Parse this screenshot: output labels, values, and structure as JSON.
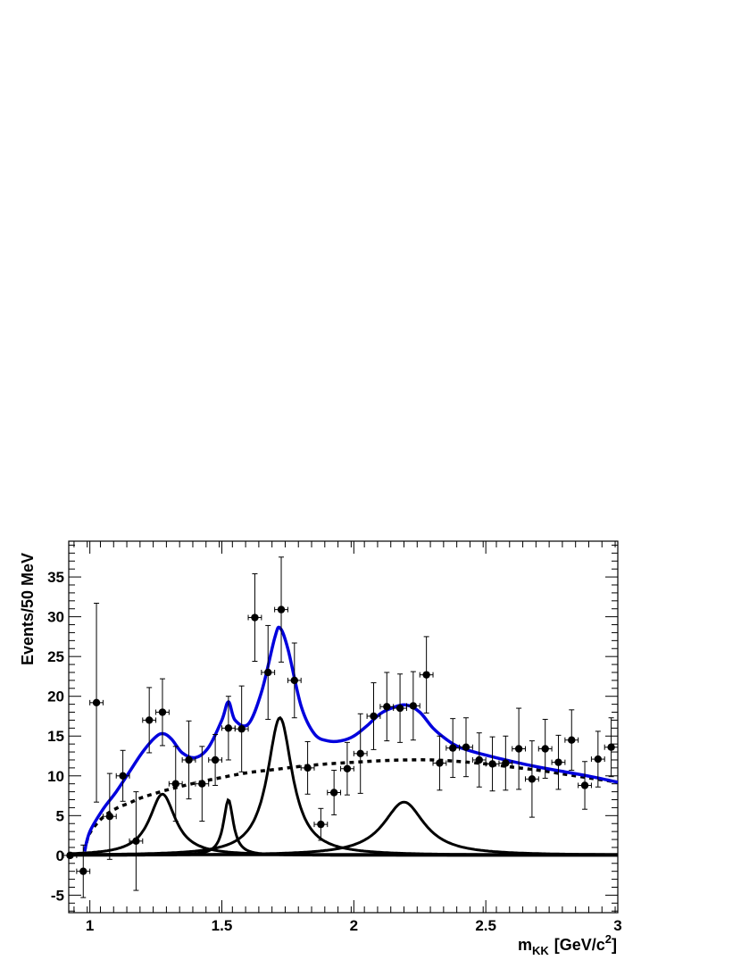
{
  "chart_data": {
    "type": "scatter",
    "title": "",
    "xlabel": "m",
    "xlabel_sub": "KK",
    "xlabel_unit": "[GeV/c",
    "xlabel_sup": "2",
    "xlabel_close": "]",
    "ylabel": "Events/50 MeV",
    "xlim": [
      0.92,
      3.0
    ],
    "ylim": [
      -7.2,
      39.5
    ],
    "x_ticks": [
      1,
      1.5,
      2,
      2.5,
      3
    ],
    "x_tick_labels": [
      "1",
      "1.5",
      "2",
      "2.5",
      "3"
    ],
    "y_ticks": [
      -5,
      0,
      5,
      10,
      15,
      20,
      25,
      30,
      35
    ],
    "y_tick_labels": [
      "-5",
      "0",
      "5",
      "10",
      "15",
      "20",
      "25",
      "30",
      "35"
    ],
    "grid": false,
    "legend": "none",
    "colors": {
      "data": "#000000",
      "total_fit": "#0000dd",
      "components": "#000000",
      "background": "#000000"
    },
    "series": [
      {
        "kind": "points_with_errors",
        "x_halfwidth": 0.025,
        "points": [
          {
            "x": 0.925,
            "y": 0.0,
            "err": 0.0
          },
          {
            "x": 0.975,
            "y": -2.0,
            "err": 3.3
          },
          {
            "x": 1.025,
            "y": 19.2,
            "err": 12.5
          },
          {
            "x": 1.075,
            "y": 4.9,
            "err": 5.4
          },
          {
            "x": 1.125,
            "y": 10.0,
            "err": 3.2
          },
          {
            "x": 1.175,
            "y": 1.8,
            "err": 6.2
          },
          {
            "x": 1.225,
            "y": 17.0,
            "err": 4.1
          },
          {
            "x": 1.275,
            "y": 18.0,
            "err": 4.2
          },
          {
            "x": 1.325,
            "y": 9.0,
            "err": 4.7
          },
          {
            "x": 1.375,
            "y": 12.0,
            "err": 4.9
          },
          {
            "x": 1.425,
            "y": 9.0,
            "err": 4.7
          },
          {
            "x": 1.475,
            "y": 12.0,
            "err": 3.2
          },
          {
            "x": 1.525,
            "y": 16.0,
            "err": 4.0
          },
          {
            "x": 1.575,
            "y": 15.9,
            "err": 5.4
          },
          {
            "x": 1.625,
            "y": 29.9,
            "err": 5.5
          },
          {
            "x": 1.675,
            "y": 23.0,
            "err": 5.9
          },
          {
            "x": 1.725,
            "y": 30.9,
            "err": 6.6
          },
          {
            "x": 1.775,
            "y": 22.0,
            "err": 4.7
          },
          {
            "x": 1.825,
            "y": 11.0,
            "err": 3.3
          },
          {
            "x": 1.875,
            "y": 3.9,
            "err": 2.0
          },
          {
            "x": 1.925,
            "y": 7.9,
            "err": 2.8
          },
          {
            "x": 1.975,
            "y": 10.9,
            "err": 3.3
          },
          {
            "x": 2.025,
            "y": 12.8,
            "err": 5.0
          },
          {
            "x": 2.075,
            "y": 17.5,
            "err": 4.2
          },
          {
            "x": 2.125,
            "y": 18.7,
            "err": 4.3
          },
          {
            "x": 2.175,
            "y": 18.5,
            "err": 4.3
          },
          {
            "x": 2.225,
            "y": 18.8,
            "err": 4.3
          },
          {
            "x": 2.275,
            "y": 22.7,
            "err": 4.8
          },
          {
            "x": 2.325,
            "y": 11.6,
            "err": 3.4
          },
          {
            "x": 2.375,
            "y": 13.5,
            "err": 3.7
          },
          {
            "x": 2.425,
            "y": 13.6,
            "err": 3.7
          },
          {
            "x": 2.475,
            "y": 12.0,
            "err": 3.4
          },
          {
            "x": 2.525,
            "y": 11.5,
            "err": 3.4
          },
          {
            "x": 2.575,
            "y": 11.6,
            "err": 3.4
          },
          {
            "x": 2.625,
            "y": 13.4,
            "err": 5.1
          },
          {
            "x": 2.675,
            "y": 9.6,
            "err": 4.8
          },
          {
            "x": 2.725,
            "y": 13.4,
            "err": 3.7
          },
          {
            "x": 2.775,
            "y": 11.7,
            "err": 3.4
          },
          {
            "x": 2.825,
            "y": 14.5,
            "err": 3.8
          },
          {
            "x": 2.875,
            "y": 8.8,
            "err": 3.0
          },
          {
            "x": 2.925,
            "y": 12.1,
            "err": 3.5
          },
          {
            "x": 2.975,
            "y": 13.6,
            "err": 3.7
          }
        ]
      },
      {
        "kind": "curve",
        "style": "solid-blue",
        "x": [
          0.98,
          1.0,
          1.05,
          1.1,
          1.15,
          1.2,
          1.25,
          1.28,
          1.31,
          1.35,
          1.4,
          1.45,
          1.5,
          1.525,
          1.55,
          1.6,
          1.65,
          1.7,
          1.72,
          1.75,
          1.8,
          1.85,
          1.9,
          1.95,
          2.0,
          2.05,
          2.1,
          2.15,
          2.2,
          2.25,
          2.3,
          2.35,
          2.4,
          2.5,
          2.6,
          2.7,
          2.8,
          2.9,
          3.0
        ],
        "y": [
          0.5,
          3.0,
          5.8,
          8.0,
          10.5,
          13.0,
          14.9,
          15.3,
          14.6,
          12.9,
          12.3,
          13.6,
          17.0,
          19.3,
          17.0,
          16.5,
          20.5,
          27.3,
          28.6,
          26.0,
          18.8,
          15.3,
          14.4,
          14.4,
          15.0,
          16.3,
          17.8,
          18.6,
          18.9,
          18.0,
          16.0,
          14.6,
          13.6,
          12.6,
          11.8,
          11.1,
          10.5,
          9.9,
          9.2
        ]
      },
      {
        "kind": "curve",
        "style": "dashed-black",
        "x": [
          0.98,
          1.0,
          1.05,
          1.1,
          1.15,
          1.2,
          1.3,
          1.4,
          1.5,
          1.6,
          1.7,
          1.8,
          1.9,
          2.0,
          2.1,
          2.2,
          2.3,
          2.4,
          2.5,
          2.6,
          2.7,
          2.8,
          2.9,
          3.0
        ],
        "y": [
          0.5,
          2.8,
          4.8,
          5.9,
          6.6,
          7.3,
          8.3,
          9.1,
          9.8,
          10.4,
          10.8,
          11.2,
          11.5,
          11.7,
          11.9,
          12.0,
          12.0,
          11.8,
          11.5,
          11.1,
          10.7,
          10.2,
          9.7,
          9.2
        ]
      },
      {
        "kind": "breit_wigner",
        "style": "solid-black",
        "peak": 7.7,
        "mass": 1.275,
        "width": 0.12
      },
      {
        "kind": "breit_wigner",
        "style": "solid-black",
        "peak": 7.0,
        "mass": 1.525,
        "width": 0.045
      },
      {
        "kind": "breit_wigner",
        "style": "solid-black",
        "peak": 17.3,
        "mass": 1.72,
        "width": 0.115
      },
      {
        "kind": "breit_wigner",
        "style": "solid-black",
        "peak": 6.7,
        "mass": 2.19,
        "width": 0.19
      }
    ]
  }
}
